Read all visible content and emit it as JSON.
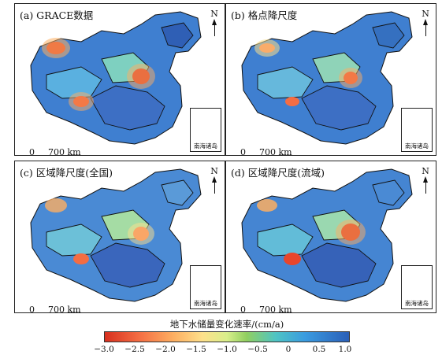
{
  "panels": [
    {
      "title": "(a) GRACE数据",
      "scale_zero": "0",
      "scale_dist": "700 km",
      "north": "N",
      "inset_label": "南海诸岛"
    },
    {
      "title": "(b) 格点降尺度",
      "scale_zero": "0",
      "scale_dist": "700 km",
      "north": "N",
      "inset_label": "南海诸岛"
    },
    {
      "title": "(c) 区域降尺度(全国)",
      "scale_zero": "0",
      "scale_dist": "700 km",
      "north": "N",
      "inset_label": "南海诸岛"
    },
    {
      "title": "(d) 区域降尺度(流域)",
      "scale_zero": "0",
      "scale_dist": "700 km",
      "north": "N",
      "inset_label": "南海诸岛"
    }
  ],
  "legend": {
    "title": "地下水储量变化速率/(cm/a)",
    "ticks": [
      "−3.0",
      "−2.5",
      "−2.0",
      "−1.5",
      "−1.0",
      "−0.5",
      "0",
      "0.5",
      "1.0"
    ],
    "colors": [
      "#d7301f",
      "#f46d43",
      "#fdae61",
      "#fee08b",
      "#d9ef8b",
      "#91cf60",
      "#4fc4c4",
      "#3a9be0",
      "#2b5fb8"
    ]
  }
}
